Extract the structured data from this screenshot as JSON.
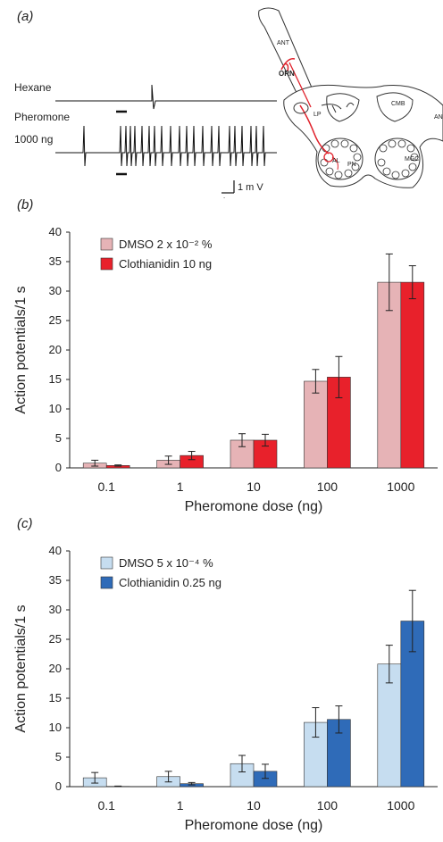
{
  "panel_labels": {
    "a": "(a)",
    "b": "(b)",
    "c": "(c)"
  },
  "recording": {
    "trace1_label": "Hexane",
    "trace2_label_line1": "Pheromone",
    "trace2_label_line2": "1000 ng",
    "scale_voltage": "1 m V",
    "scale_time": "1 s"
  },
  "brain_diagram": {
    "labels": [
      "ANT",
      "ORN",
      "LP",
      "CMB",
      "AN",
      "AL",
      "PN",
      "MGC",
      "AL",
      "MGC"
    ],
    "colors": {
      "neuron": "#e0202a",
      "outline": "#222222"
    }
  },
  "chart_data": [
    {
      "type": "bar",
      "ylabel": "Action potentials/1 s",
      "xlabel": "Pheromone dose (ng)",
      "categories": [
        "0.1",
        "1",
        "10",
        "100",
        "1000"
      ],
      "ylim": [
        0,
        40
      ],
      "yticks": [
        0,
        5,
        10,
        15,
        20,
        25,
        30,
        35,
        40
      ],
      "legend_position": "top-left",
      "series": [
        {
          "name": "DMSO 2 x 10⁻² %",
          "color": "#e6b3b6",
          "values": [
            0.8,
            1.3,
            4.7,
            14.7,
            31.5
          ],
          "errors": [
            0.5,
            0.7,
            1.1,
            2.0,
            4.8
          ]
        },
        {
          "name": "Clothianidin 10 ng",
          "color": "#e8212b",
          "values": [
            0.4,
            2.1,
            4.7,
            15.4,
            31.5
          ],
          "errors": [
            0.1,
            0.7,
            1.0,
            3.5,
            2.8
          ]
        }
      ]
    },
    {
      "type": "bar",
      "ylabel": "Action potentials/1 s",
      "xlabel": "Pheromone dose (ng)",
      "categories": [
        "0.1",
        "1",
        "10",
        "100",
        "1000"
      ],
      "ylim": [
        0,
        40
      ],
      "yticks": [
        0,
        5,
        10,
        15,
        20,
        25,
        30,
        35,
        40
      ],
      "legend_position": "top-left",
      "series": [
        {
          "name": "DMSO 5 x 10⁻⁴ %",
          "color": "#c6ddf0",
          "values": [
            1.5,
            1.7,
            3.9,
            10.9,
            20.8
          ],
          "errors": [
            0.9,
            0.9,
            1.4,
            2.5,
            3.2
          ]
        },
        {
          "name": "Clothianidin 0.25 ng",
          "color": "#2f6bb8",
          "values": [
            0.05,
            0.5,
            2.6,
            11.4,
            28.1
          ],
          "errors": [
            0.05,
            0.2,
            1.2,
            2.3,
            5.2
          ]
        }
      ]
    }
  ]
}
